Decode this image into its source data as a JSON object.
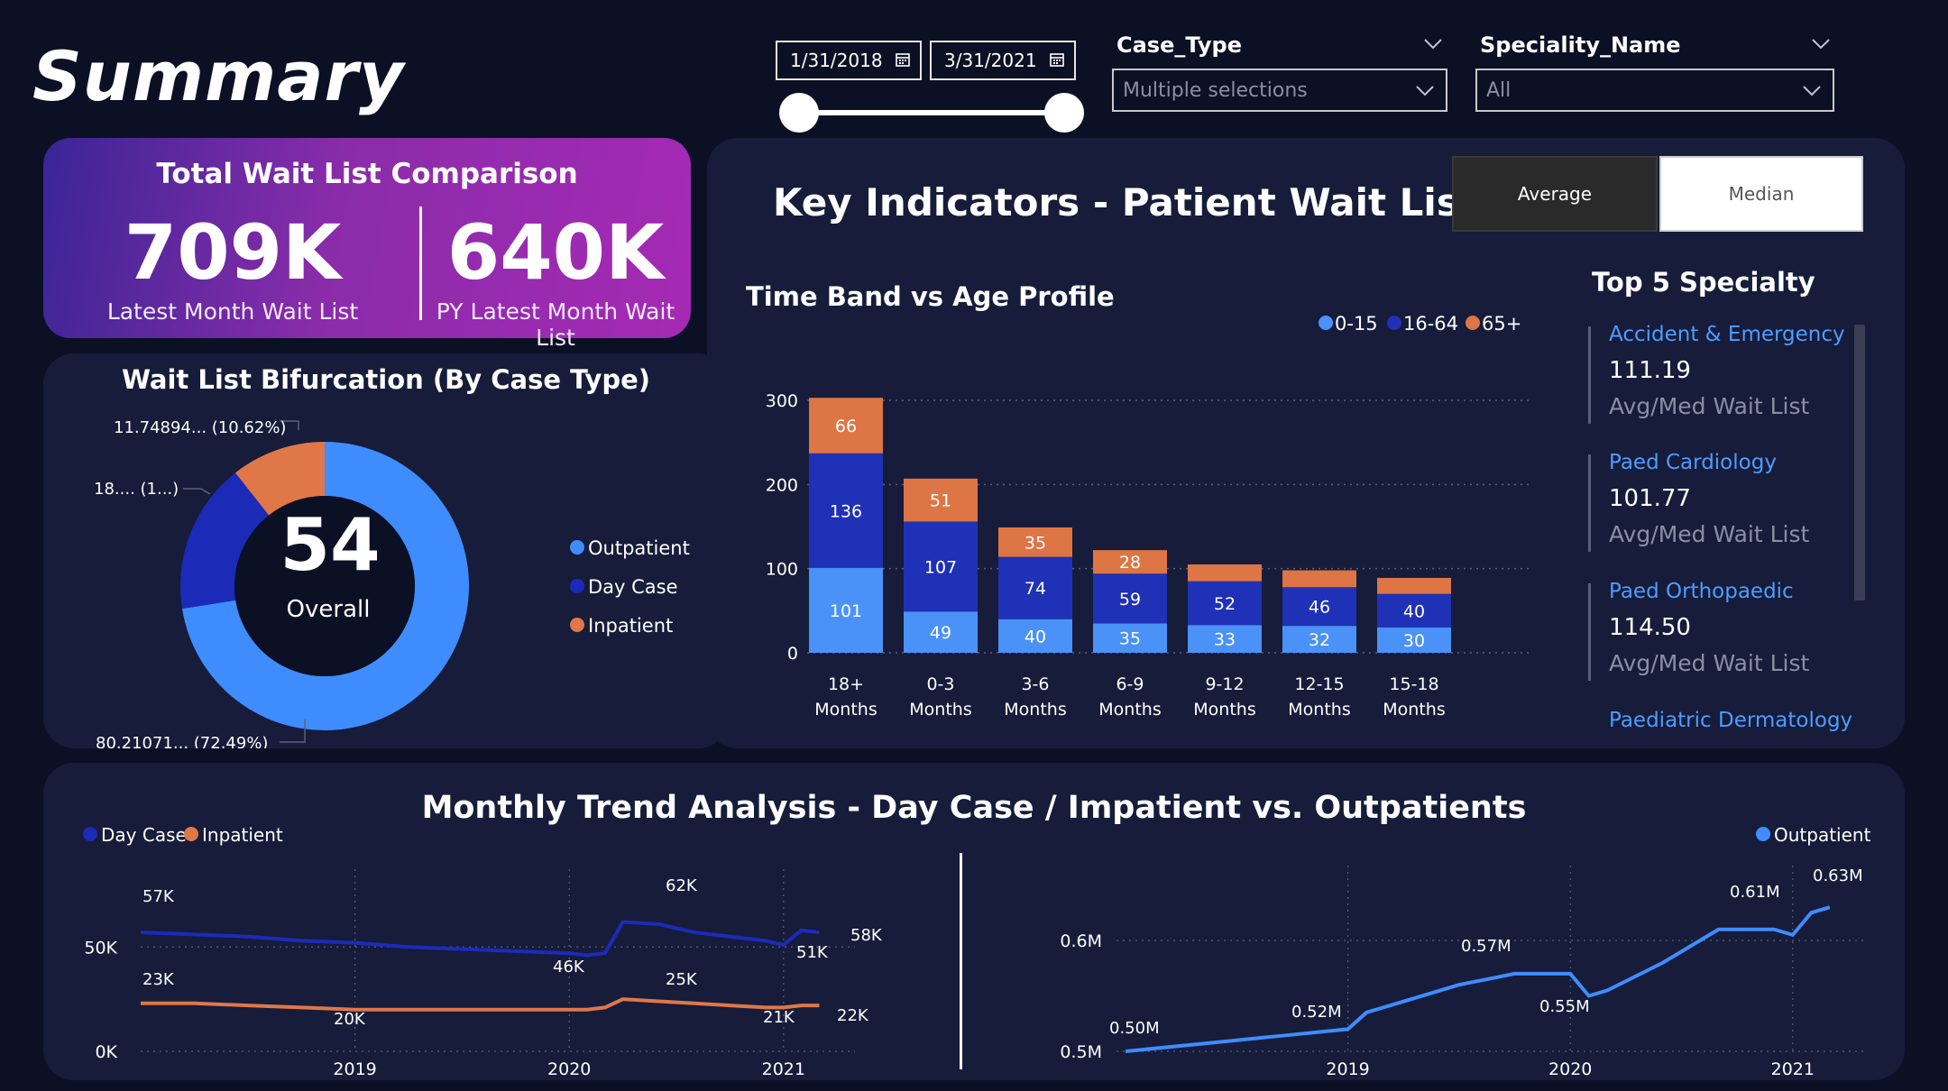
{
  "page": {
    "title": "Summary"
  },
  "filters": {
    "start_date": "1/31/2018",
    "end_date": "3/31/2021",
    "case_type": {
      "title": "Case_Type",
      "value": "Multiple selections"
    },
    "speciality": {
      "title": "Speciality_Name",
      "value": "All"
    }
  },
  "kpi": {
    "title": "Total Wait List Comparison",
    "current": {
      "value": "709K",
      "label": "Latest Month Wait List"
    },
    "previous": {
      "value": "640K",
      "label": "PY Latest Month Wait List"
    }
  },
  "key_indicators": {
    "title": "Key Indicators - Patient Wait List",
    "toggle": {
      "average": "Average",
      "median": "Median",
      "selected": "Average"
    }
  },
  "donut": {
    "title": "Wait List Bifurcation (By Case Type)",
    "center_value": "54",
    "center_label": "Overall",
    "slice_labels": {
      "outpatient": "80.21071... (72.49%)",
      "day_case": "18.... (1...)",
      "inpatient": "11.74894... (10.62%)"
    },
    "legend": [
      "Outpatient",
      "Day Case",
      "Inpatient"
    ]
  },
  "bar_chart": {
    "title": "Time Band vs Age Profile",
    "legend": [
      "0-15",
      "16-64",
      "65+"
    ],
    "category_lines": [
      [
        "18+",
        "Months"
      ],
      [
        "0-3",
        "Months"
      ],
      [
        "3-6",
        "Months"
      ],
      [
        "6-9",
        "Months"
      ],
      [
        "9-12",
        "Months"
      ],
      [
        "12-15",
        "Months"
      ],
      [
        "15-18",
        "Months"
      ]
    ],
    "y_ticks": [
      "0",
      "100",
      "200",
      "300"
    ]
  },
  "top_specialty": {
    "title": "Top 5 Specialty",
    "items": [
      {
        "name": "Accident & Emergency",
        "value": "111.19",
        "label": "Avg/Med Wait List"
      },
      {
        "name": "Paed Cardiology",
        "value": "101.77",
        "label": "Avg/Med Wait List"
      },
      {
        "name": "Paed Orthopaedic",
        "value": "114.50",
        "label": "Avg/Med Wait List"
      },
      {
        "name": "Paediatric Dermatology"
      }
    ]
  },
  "trend": {
    "title": "Monthly Trend Analysis - Day Case / Impatient vs. Outpatients",
    "left_legend": [
      "Day Case",
      "Inpatient"
    ],
    "right_legend": [
      "Outpatient"
    ],
    "left_y_ticks": [
      "0K",
      "50K"
    ],
    "right_y_ticks": [
      "0.5M",
      "0.6M"
    ],
    "x_ticks": [
      "2019",
      "2020",
      "2021"
    ],
    "day_case_labels": [
      "57K",
      "46K",
      "62K",
      "51K",
      "58K"
    ],
    "inpatient_labels": [
      "23K",
      "20K",
      "25K",
      "21K",
      "22K"
    ],
    "outpatient_labels": [
      "0.50M",
      "0.52M",
      "0.57M",
      "0.55M",
      "0.61M",
      "0.63M"
    ]
  },
  "colors": {
    "background": "#0c1025",
    "panel": "#161c3a",
    "age_0_15": "#4a92f7",
    "age_16_64": "#1f31b6",
    "age_65_plus": "#de7545",
    "outpatient": "#3f8cff",
    "day_case": "#1b2bb8",
    "inpatient": "#e07749"
  },
  "chart_data": [
    {
      "type": "bar",
      "title": "Time Band vs Age Profile",
      "categories": [
        "18+ Months",
        "0-3 Months",
        "3-6 Months",
        "6-9 Months",
        "9-12 Months",
        "12-15 Months",
        "15-18 Months"
      ],
      "series": [
        {
          "name": "0-15",
          "values": [
            101,
            49,
            40,
            35,
            33,
            32,
            30
          ]
        },
        {
          "name": "16-64",
          "values": [
            136,
            107,
            74,
            59,
            52,
            46,
            40
          ]
        },
        {
          "name": "65+",
          "values": [
            66,
            51,
            35,
            28,
            20,
            20,
            19
          ]
        }
      ],
      "stacked": true,
      "ylim": [
        0,
        300
      ],
      "legend_position": "top-right",
      "grid": true
    },
    {
      "type": "pie",
      "title": "Wait List Bifurcation (By Case Type)",
      "categories": [
        "Outpatient",
        "Day Case",
        "Inpatient"
      ],
      "values": [
        80.21,
        18.69,
        11.75
      ],
      "percent": [
        72.49,
        16.89,
        10.62
      ],
      "hole": true
    },
    {
      "type": "line",
      "title": "Day Case / Inpatient",
      "x": [
        "2018-01",
        "2018-04",
        "2018-07",
        "2018-10",
        "2019-01",
        "2019-04",
        "2019-07",
        "2019-10",
        "2020-01",
        "2020-02",
        "2020-03",
        "2020-04",
        "2020-06",
        "2020-08",
        "2020-10",
        "2020-12",
        "2021-01",
        "2021-02",
        "2021-03"
      ],
      "series": [
        {
          "name": "Day Case",
          "values": [
            57,
            56,
            55,
            53,
            52,
            50,
            49,
            48,
            47,
            46,
            47,
            62,
            61,
            57,
            55,
            53,
            51,
            58,
            57
          ]
        },
        {
          "name": "Inpatient",
          "values": [
            23,
            23,
            22,
            21,
            20,
            20,
            20,
            20,
            20,
            20,
            21,
            25,
            24,
            23,
            22,
            21,
            21,
            22,
            22
          ]
        }
      ],
      "ylabel": "",
      "ylim": [
        0,
        70
      ],
      "units": "K"
    },
    {
      "type": "line",
      "title": "Outpatient",
      "x": [
        "2018-01",
        "2018-04",
        "2018-07",
        "2018-10",
        "2019-01",
        "2019-02",
        "2019-04",
        "2019-07",
        "2019-10",
        "2020-01",
        "2020-02",
        "2020-03",
        "2020-06",
        "2020-09",
        "2020-12",
        "2021-01",
        "2021-02",
        "2021-03"
      ],
      "series": [
        {
          "name": "Outpatient",
          "values": [
            0.5,
            0.505,
            0.51,
            0.515,
            0.52,
            0.535,
            0.545,
            0.56,
            0.57,
            0.57,
            0.55,
            0.555,
            0.58,
            0.61,
            0.61,
            0.605,
            0.625,
            0.63
          ]
        }
      ],
      "ylim": [
        0.5,
        0.65
      ],
      "units": "M"
    }
  ]
}
